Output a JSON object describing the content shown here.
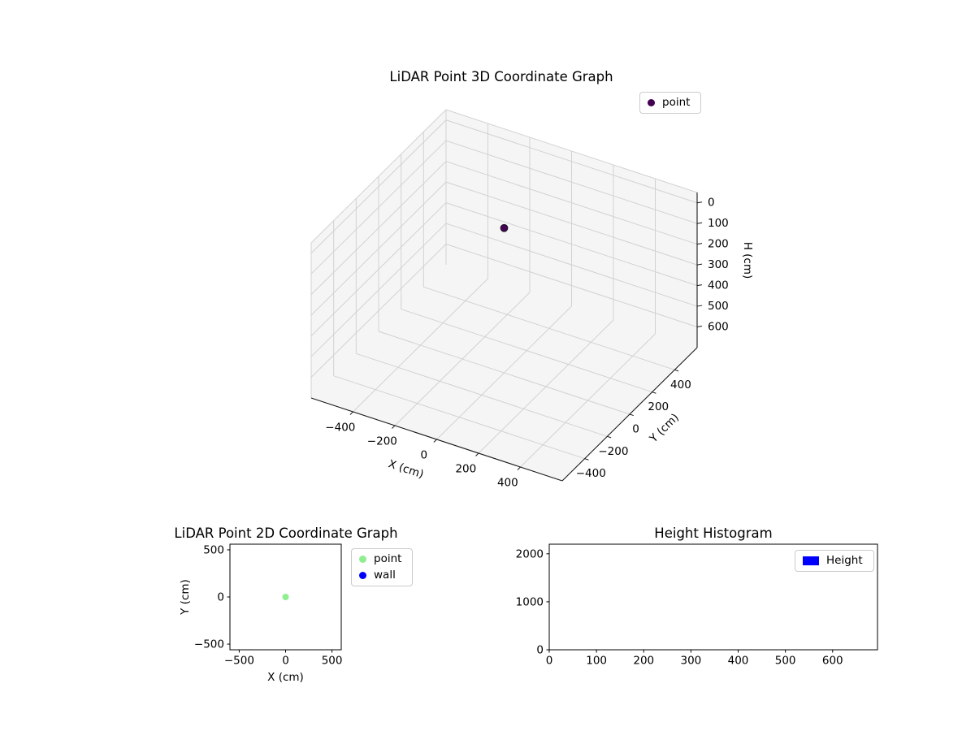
{
  "figure": {
    "background": "#ffffff",
    "text_color": "#000000"
  },
  "chart_data": [
    {
      "id": "plot3d",
      "type": "scatter3d",
      "title": "LiDAR Point 3D Coordinate Graph",
      "xlabel": "X (cm)",
      "ylabel": "Y (cm)",
      "zlabel": "H (cm)",
      "xlim": [
        -600,
        600
      ],
      "ylim": [
        -600,
        600
      ],
      "zlim": [
        -50,
        700
      ],
      "z_inverted": true,
      "xticks": [
        -400,
        -200,
        0,
        200,
        400
      ],
      "yticks": [
        -400,
        -200,
        0,
        200,
        400
      ],
      "zticks": [
        0,
        100,
        200,
        300,
        400,
        500,
        600
      ],
      "legend": [
        {
          "label": "point",
          "color": "#440154",
          "marker": "circle"
        }
      ],
      "legend_position": "upper right",
      "points": [
        {
          "x": 0,
          "y": 0,
          "h": 0,
          "color": "#440154"
        }
      ],
      "pane_color": "#f5f5f5",
      "grid_color": "#d2d2d2",
      "grid": true
    },
    {
      "id": "plot2d",
      "type": "scatter",
      "title": "LiDAR Point 2D Coordinate Graph",
      "xlabel": "X (cm)",
      "ylabel": "Y (cm)",
      "xlim": [
        -600,
        600
      ],
      "ylim": [
        -560,
        560
      ],
      "xticks": [
        -500,
        0,
        500
      ],
      "yticks": [
        -500,
        0,
        500
      ],
      "grid": false,
      "legend": [
        {
          "label": "point",
          "color": "#90ee90",
          "marker": "circle"
        },
        {
          "label": "wall",
          "color": "#0000ff",
          "marker": "circle"
        }
      ],
      "legend_position": "outside right",
      "points": [
        {
          "series": "point",
          "x": 0,
          "y": 0,
          "color": "#90ee90"
        }
      ]
    },
    {
      "id": "hist",
      "type": "bar",
      "title": "Height Histogram",
      "xlabel": "",
      "ylabel": "",
      "xlim": [
        0,
        695
      ],
      "ylim": [
        0,
        2200
      ],
      "xticks": [
        0,
        100,
        200,
        300,
        400,
        500,
        600
      ],
      "yticks": [
        0,
        1000,
        2000
      ],
      "grid": false,
      "legend": [
        {
          "label": "Height",
          "color": "#0000ff",
          "marker": "rect"
        }
      ],
      "legend_position": "upper right",
      "bars": []
    }
  ]
}
